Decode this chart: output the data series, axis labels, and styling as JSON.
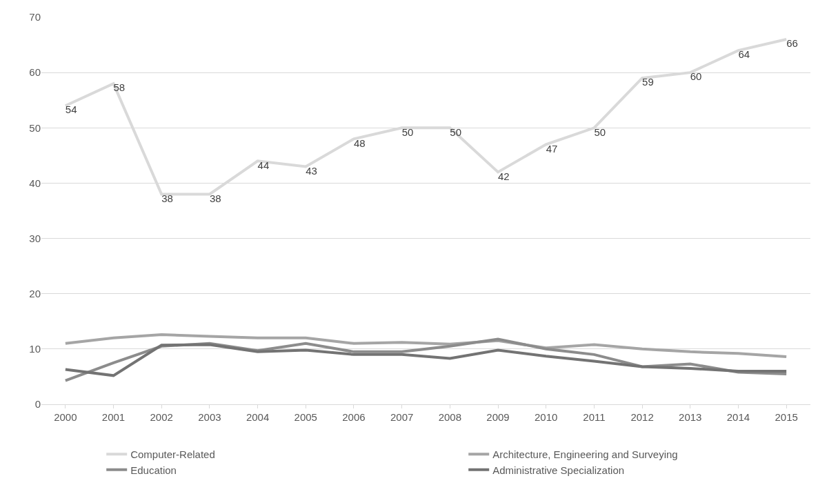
{
  "chart_data": {
    "type": "line",
    "categories": [
      "2000",
      "2001",
      "2002",
      "2003",
      "2004",
      "2005",
      "2006",
      "2007",
      "2008",
      "2009",
      "2010",
      "2011",
      "2012",
      "2013",
      "2014",
      "2015"
    ],
    "series": [
      {
        "name": "Computer-Related",
        "color": "#d9d9d9",
        "values": [
          54,
          58,
          38,
          38,
          44,
          43,
          48,
          50,
          50,
          42,
          47,
          50,
          59,
          60,
          64,
          66
        ],
        "value_labels": [
          "54",
          "58",
          "38",
          "38",
          "44",
          "43",
          "48",
          "50",
          "50",
          "42",
          "47",
          "50",
          "59",
          "60",
          "64",
          "66"
        ]
      },
      {
        "name": "Architecture, Engineering and Surveying",
        "color": "#a5a5a5",
        "values": [
          11,
          12,
          12.6,
          12.3,
          12,
          12,
          11,
          11.2,
          10.9,
          11.5,
          10.2,
          10.8,
          10,
          9.5,
          9.2,
          8.6
        ]
      },
      {
        "name": "Education",
        "color": "#8c8c8c",
        "values": [
          4.3,
          7.5,
          10.5,
          11,
          9.7,
          11,
          9.5,
          9.5,
          10.5,
          11.8,
          10,
          9,
          6.8,
          7.3,
          5.8,
          5.5
        ]
      },
      {
        "name": "Administrative Specialization",
        "color": "#737373",
        "values": [
          6.3,
          5.2,
          10.7,
          10.8,
          9.5,
          9.8,
          9,
          9,
          8.3,
          9.8,
          8.7,
          7.8,
          6.8,
          6.5,
          6,
          6
        ]
      }
    ],
    "ylim": [
      0,
      70
    ],
    "yticks": [
      0,
      10,
      20,
      30,
      40,
      50,
      60,
      70
    ],
    "grid": "y",
    "legend": "bottom",
    "marker": "none",
    "line_style": "solid"
  }
}
